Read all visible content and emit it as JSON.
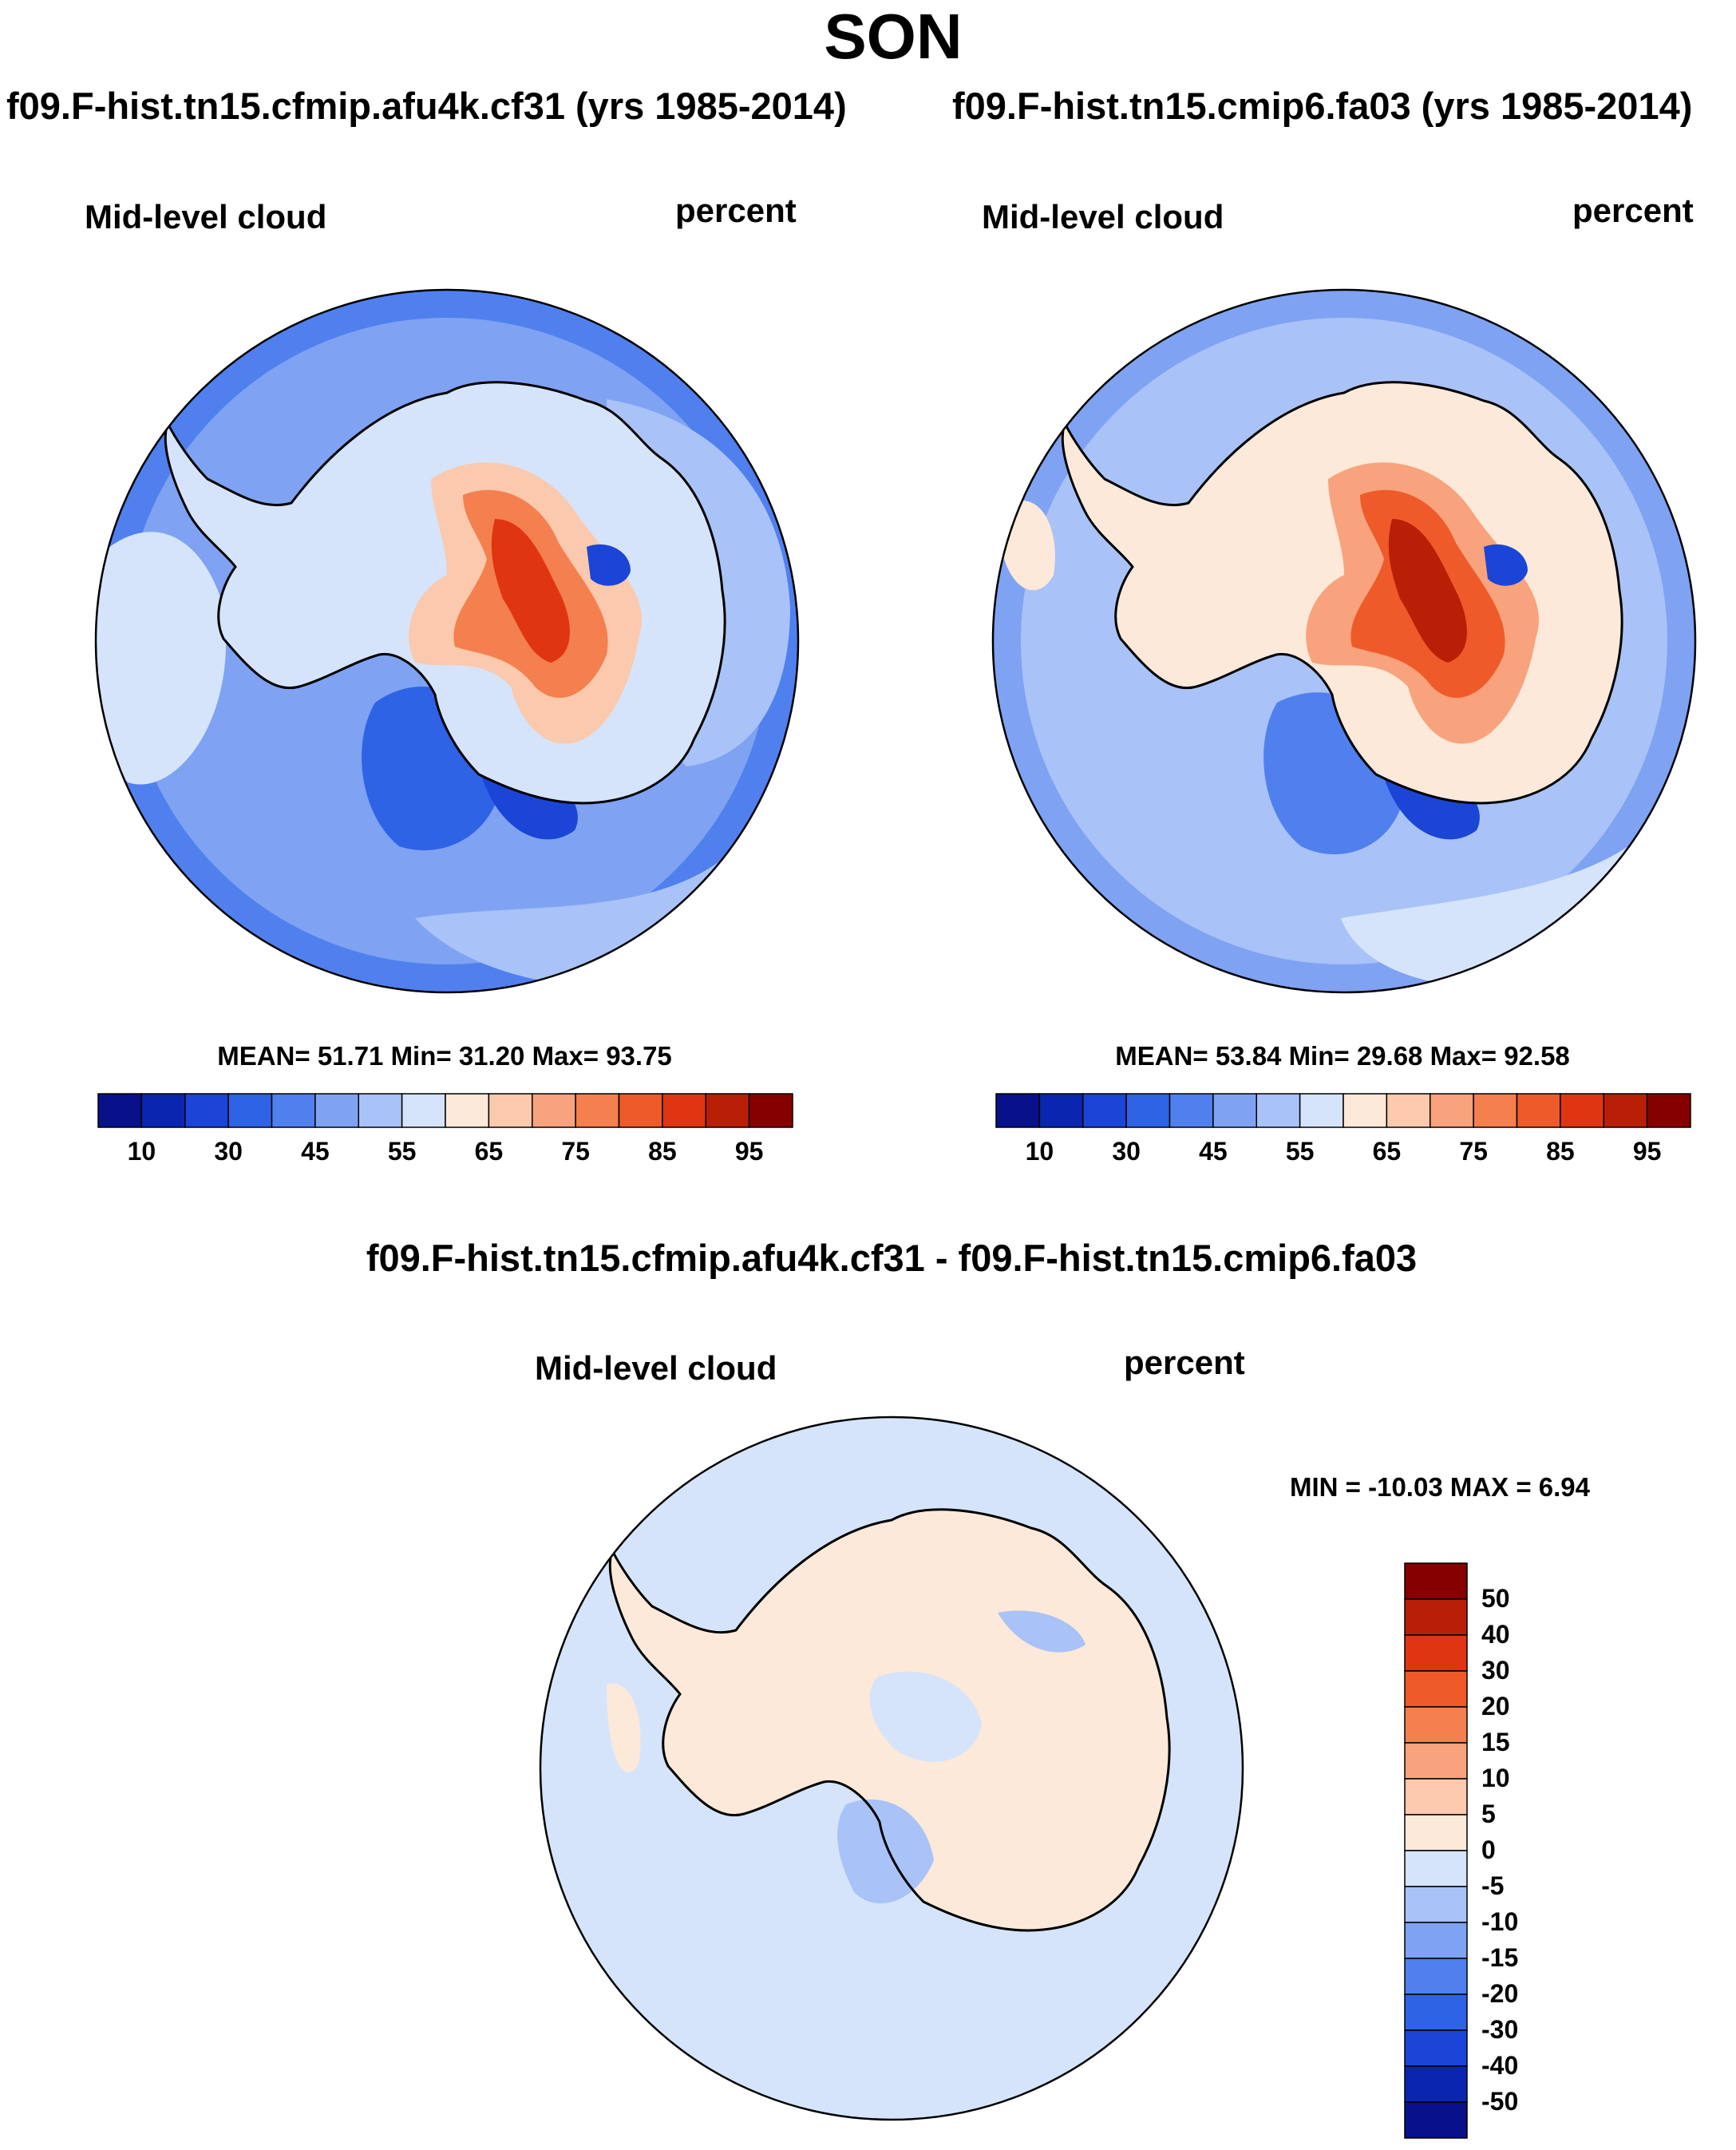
{
  "season": "SON",
  "panels": [
    {
      "case": "f09.F-hist.tn15.cfmip.afu4k.cf31 (yrs 1985-2014)",
      "variable": "Mid-level cloud",
      "units": "percent",
      "stats": "MEAN=  51.71  Min=  31.20  Max=  93.75"
    },
    {
      "case": "f09.F-hist.tn15.cmip6.fa03 (yrs 1985-2014)",
      "variable": "Mid-level cloud",
      "units": "percent",
      "stats": "MEAN=  53.84  Min=  29.68  Max=  92.58"
    }
  ],
  "diff": {
    "title": "f09.F-hist.tn15.cfmip.afu4k.cf31 - f09.F-hist.tn15.cmip6.fa03",
    "variable": "Mid-level cloud",
    "units": "percent",
    "stats": "MIN = -10.03 MAX =   6.94"
  },
  "chart_data": [
    {
      "type": "heatmap",
      "projection": "south-polar stereographic",
      "title": "f09.F-hist.tn15.cfmip.afu4k.cf31 (yrs 1985-2014)",
      "variable": "Mid-level cloud",
      "units": "percent",
      "mean": 51.71,
      "min": 31.2,
      "max": 93.75,
      "colorbar_levels": [
        5,
        10,
        20,
        30,
        40,
        45,
        50,
        55,
        60,
        65,
        70,
        75,
        80,
        85,
        90,
        95
      ],
      "colorbar_labels": [
        "10",
        "30",
        "45",
        "55",
        "65",
        "75",
        "85",
        "95"
      ]
    },
    {
      "type": "heatmap",
      "projection": "south-polar stereographic",
      "title": "f09.F-hist.tn15.cmip6.fa03 (yrs 1985-2014)",
      "variable": "Mid-level cloud",
      "units": "percent",
      "mean": 53.84,
      "min": 29.68,
      "max": 92.58,
      "colorbar_levels": [
        5,
        10,
        20,
        30,
        40,
        45,
        50,
        55,
        60,
        65,
        70,
        75,
        80,
        85,
        90,
        95
      ],
      "colorbar_labels": [
        "10",
        "30",
        "45",
        "55",
        "65",
        "75",
        "85",
        "95"
      ]
    },
    {
      "type": "heatmap",
      "projection": "south-polar stereographic",
      "title": "f09.F-hist.tn15.cfmip.afu4k.cf31 - f09.F-hist.tn15.cmip6.fa03",
      "variable": "Mid-level cloud",
      "units": "percent",
      "min": -10.03,
      "max": 6.94,
      "colorbar_labels": [
        "50",
        "40",
        "30",
        "20",
        "15",
        "10",
        "5",
        "0",
        "-5",
        "-10",
        "-15",
        "-20",
        "-30",
        "-40",
        "-50"
      ]
    }
  ],
  "colors": {
    "abs_scale": [
      "#08108a",
      "#0a26b0",
      "#1a45d6",
      "#2f63e6",
      "#4f80ee",
      "#7fa2f2",
      "#a9c2f7",
      "#d5e4fa",
      "#fde9d9",
      "#fbc9ad",
      "#f8a37d",
      "#f47f4f",
      "#ef5a2a",
      "#e03512",
      "#b81f06",
      "#860000"
    ],
    "diff_scale": [
      "#860000",
      "#b81f06",
      "#e03512",
      "#ef5a2a",
      "#f47f4f",
      "#f8a37d",
      "#fbc9ad",
      "#fde9d9",
      "#d5e4fa",
      "#a9c2f7",
      "#7fa2f2",
      "#4f80ee",
      "#2f63e6",
      "#1a45d6",
      "#0a26b0",
      "#08108a"
    ]
  }
}
